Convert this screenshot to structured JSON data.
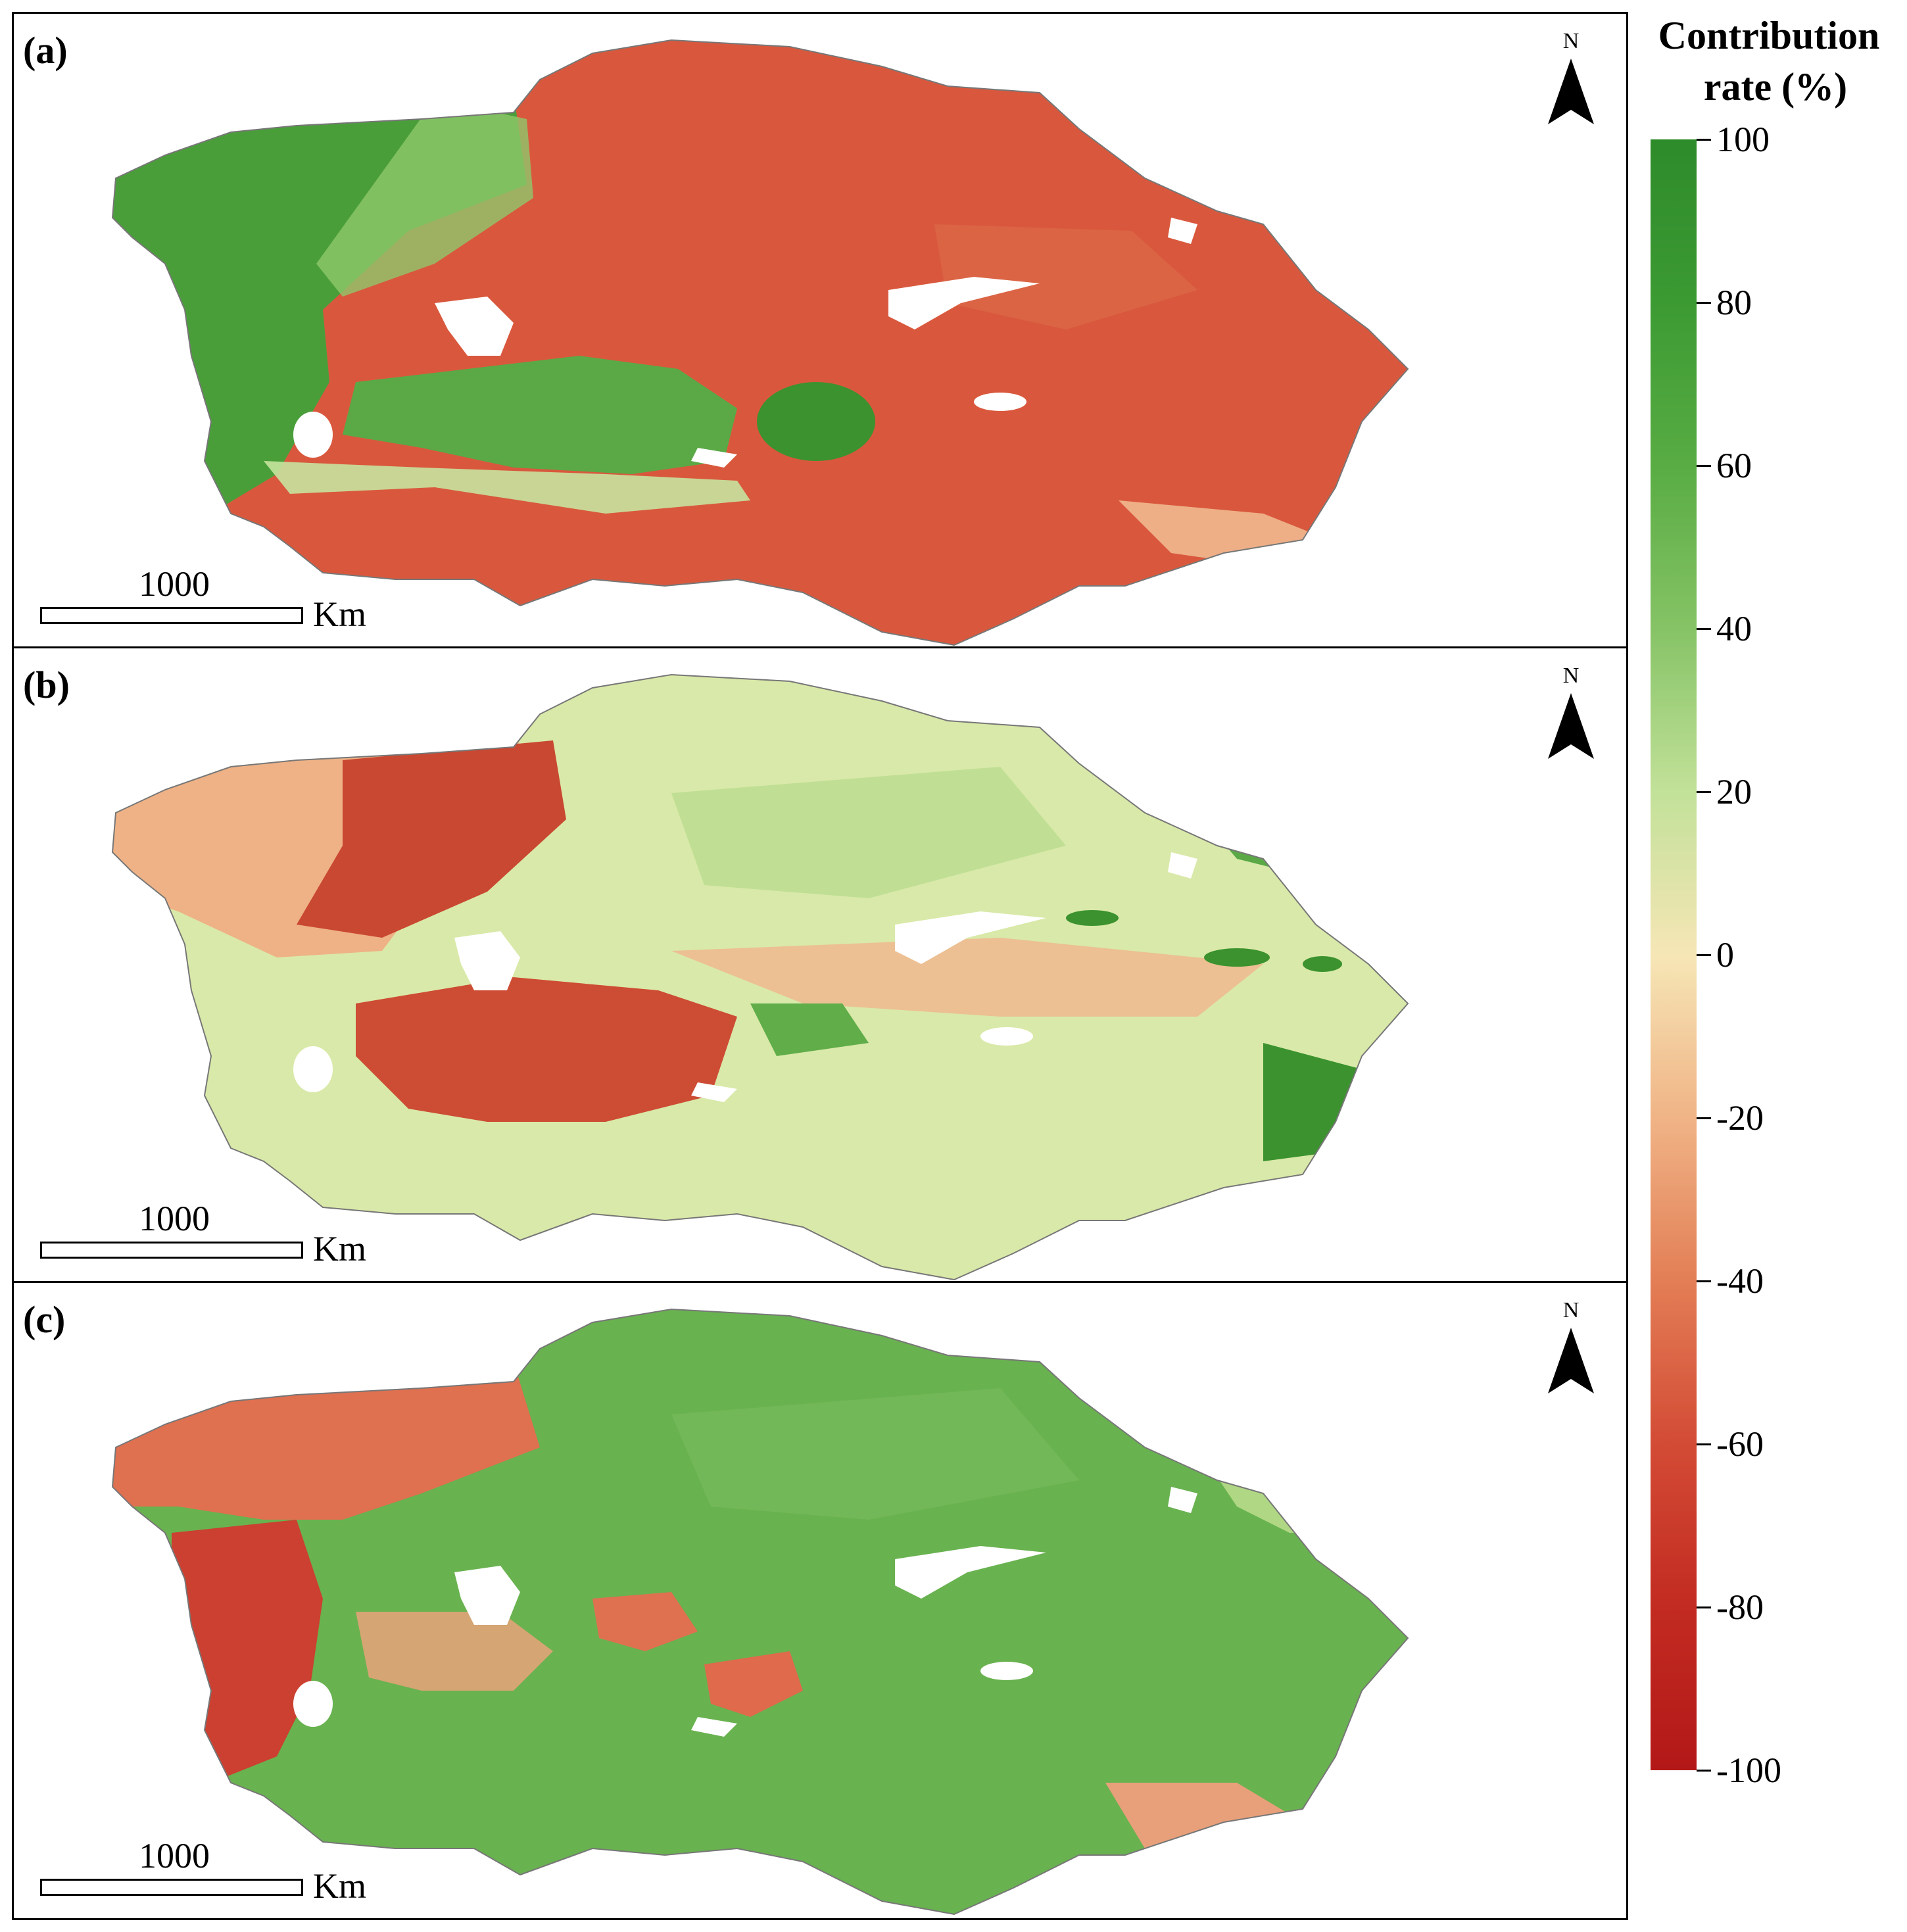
{
  "panels": [
    {
      "label": "(a)",
      "north": "N",
      "scale_value": "1000",
      "scale_unit": "Km"
    },
    {
      "label": "(b)",
      "north": "N",
      "scale_value": "1000",
      "scale_unit": "Km"
    },
    {
      "label": "(c)",
      "north": "N",
      "scale_value": "1000",
      "scale_unit": "Km"
    }
  ],
  "legend": {
    "title_line1": "Contribution",
    "title_line2": "rate (%)",
    "range_max": 100,
    "range_min": -100,
    "ticks": [
      "100",
      "80",
      "60",
      "40",
      "20",
      "0",
      "-20",
      "-40",
      "-60",
      "-80",
      "-100"
    ],
    "colors": {
      "positive_high": "#2e8b2a",
      "positive_mid": "#86c366",
      "neutral": "#f6e6b6",
      "negative_mid": "#e37e56",
      "negative_high": "#b31818"
    }
  }
}
